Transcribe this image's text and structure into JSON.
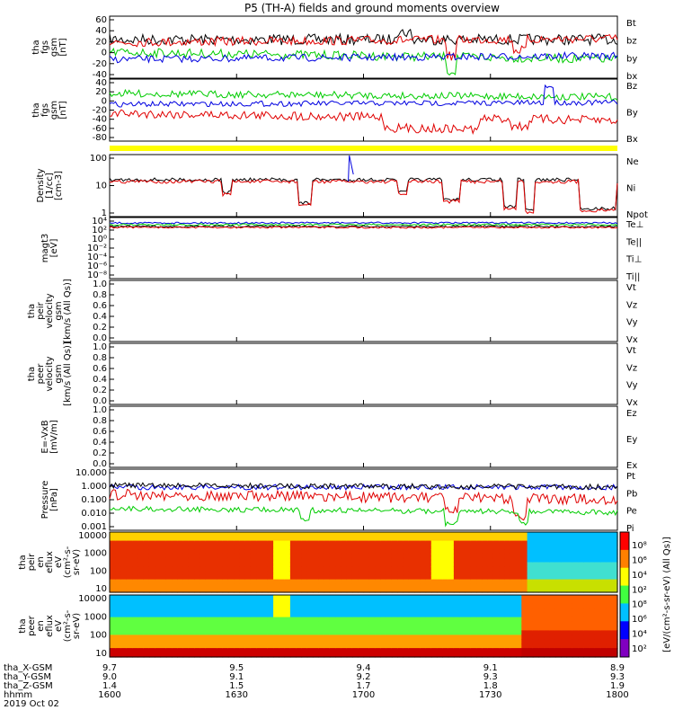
{
  "page": {
    "title": "P5 (TH-A) fields and ground moments overview"
  },
  "colors": {
    "black": "#000000",
    "red": "#e00000",
    "green": "#00cc00",
    "blue": "#0000e0",
    "yellow": "#ffff00"
  },
  "panels": [
    {
      "id": "fgs_gsm",
      "ylabel": [
        "tha",
        "fgs",
        "gsm",
        "[nT]"
      ],
      "ticks": [
        "60",
        "40",
        "20",
        "0",
        "-20",
        "-40"
      ],
      "legend": [
        {
          "label": "Bt",
          "color": "#000000"
        },
        {
          "label": "bz",
          "color": "#e00000"
        },
        {
          "label": "by",
          "color": "#00cc00"
        },
        {
          "label": "bx",
          "color": "#0000e0"
        }
      ]
    },
    {
      "id": "fgs_gsm_l",
      "ylabel": [
        "tha",
        "fgs",
        "gsm",
        "[nT]"
      ],
      "ticks": [
        "40",
        "20",
        "0",
        "-20",
        "-40",
        "-60",
        "-80"
      ],
      "legend": [
        {
          "label": "Bz",
          "color": "#e00000"
        },
        {
          "label": "By",
          "color": "#00cc00"
        },
        {
          "label": "Bx",
          "color": "#0000e0"
        }
      ]
    },
    {
      "id": "density",
      "ylabel": [
        "Density",
        "[1/cc]",
        "[cm-3]"
      ],
      "ticks": [
        "100",
        "10",
        "1"
      ],
      "legend": [
        {
          "label": "Ne",
          "color": "#e00000"
        },
        {
          "label": "Ni",
          "color": "#000000"
        },
        {
          "label": "Npot",
          "color": "#0000e0"
        }
      ]
    },
    {
      "id": "temperature",
      "ylabel": [
        "magt3",
        "[eV]"
      ],
      "ticks": [
        "10⁴",
        "10²",
        "10⁰",
        "10⁻²",
        "10⁻⁴",
        "10⁻⁶",
        "10⁻⁸"
      ],
      "legend": [
        {
          "label": "Te⊥",
          "color": "#e00000"
        },
        {
          "label": "Te||",
          "color": "#000000"
        },
        {
          "label": "Ti⊥",
          "color": "#0000e0"
        },
        {
          "label": "Ti||",
          "color": "#00cc00"
        }
      ]
    },
    {
      "id": "peir_velocity",
      "ylabel": [
        "tha",
        "peir",
        "velocity",
        "gsm",
        "[km/s (All Qs)]"
      ],
      "ticks": [
        "1.0",
        "0.8",
        "0.6",
        "0.4",
        "0.2",
        "0.0"
      ],
      "legend": [
        {
          "label": "Vt",
          "color": "#000000"
        },
        {
          "label": "Vz",
          "color": "#e00000"
        },
        {
          "label": "Vy",
          "color": "#00cc00"
        },
        {
          "label": "Vx",
          "color": "#0000e0"
        }
      ]
    },
    {
      "id": "peer_velocity",
      "ylabel": [
        "tha",
        "peer",
        "velocity",
        "gsm",
        "[km/s (All Qs)]"
      ],
      "ticks": [
        "1.0",
        "0.8",
        "0.6",
        "0.4",
        "0.2",
        "0.0"
      ],
      "legend": [
        {
          "label": "Vt",
          "color": "#000000"
        },
        {
          "label": "Vz",
          "color": "#e00000"
        },
        {
          "label": "Vy",
          "color": "#00cc00"
        },
        {
          "label": "Vx",
          "color": "#0000e0"
        }
      ]
    },
    {
      "id": "efield",
      "ylabel": [
        "E=-VxB",
        "[mV/m]"
      ],
      "ticks": [
        "1.0",
        "0.8",
        "0.6",
        "0.4",
        "0.2",
        "0.0"
      ],
      "legend": [
        {
          "label": "Ez",
          "color": "#e00000"
        },
        {
          "label": "Ey",
          "color": "#00cc00"
        },
        {
          "label": "Ex",
          "color": "#0000e0"
        }
      ]
    },
    {
      "id": "pressure",
      "ylabel": [
        "Pressure",
        "[nPa]"
      ],
      "ticks": [
        "10.000",
        "1.000",
        "0.100",
        "0.010",
        "0.001"
      ],
      "legend": [
        {
          "label": "Pt",
          "color": "#000000"
        },
        {
          "label": "Pb",
          "color": "#e00000"
        },
        {
          "label": "Pe",
          "color": "#00cc00"
        },
        {
          "label": "Pi",
          "color": "#0000e0"
        }
      ]
    },
    {
      "id": "peir_eflux",
      "ylabel": [
        "tha",
        "peir",
        "en",
        "eflux",
        "eV",
        "(cm²-s-",
        "sr-eV)"
      ],
      "ticks": [
        "10000",
        "1000",
        "100",
        "10"
      ]
    },
    {
      "id": "peer_eflux",
      "ylabel": [
        "tha",
        "peer",
        "en",
        "eflux",
        "eV",
        "(cm²-s-",
        "sr-eV)"
      ],
      "ticks": [
        "10000",
        "1000",
        "100",
        "10"
      ]
    }
  ],
  "colorbar": {
    "label": "[eV/(cm²-s-sr-eV) (All Qs)]",
    "ticks": [
      "10⁸",
      "10⁶",
      "10⁴",
      "10²",
      "10⁸",
      "10⁶",
      "10⁴",
      "10²"
    ]
  },
  "orbit": {
    "rows": [
      {
        "label": "tha_X-GSM",
        "values": [
          "9.7",
          "9.5",
          "9.4",
          "9.1",
          "8.9"
        ]
      },
      {
        "label": "tha_Y-GSM",
        "values": [
          "9.0",
          "9.1",
          "9.2",
          "9.3",
          "9.3"
        ]
      },
      {
        "label": "tha_Z-GSM",
        "values": [
          "1.4",
          "1.5",
          "1.7",
          "1.8",
          "1.9"
        ]
      },
      {
        "label": "hhmm",
        "values": [
          "1600",
          "1630",
          "1700",
          "1730",
          "1800"
        ]
      }
    ],
    "date": "2019 Oct 02"
  },
  "chart_data": {
    "type": "line",
    "title": "P5 (TH-A) fields and ground moments overview",
    "x": {
      "label": "hhmm",
      "ticks": [
        "1600",
        "1630",
        "1700",
        "1730",
        "1800"
      ],
      "range": [
        "1600",
        "1800"
      ]
    },
    "series": [
      {
        "name": "Bt",
        "panel": "fgs_gsm",
        "approx": "20-40 nT, spikes to 45"
      },
      {
        "name": "bz",
        "panel": "fgs_gsm",
        "approx": "10-40 nT"
      },
      {
        "name": "by",
        "panel": "fgs_gsm",
        "approx": "-5 to 10 nT"
      },
      {
        "name": "bx",
        "panel": "fgs_gsm",
        "approx": "-10 to 0 nT"
      },
      {
        "name": "Ne",
        "panel": "density",
        "approx": "~8 cm-3, dips to ~1"
      },
      {
        "name": "Ni",
        "panel": "density",
        "approx": "~8 cm-3"
      },
      {
        "name": "Npot",
        "panel": "density",
        "approx": "spike to ~100 near 1705"
      }
    ],
    "ylim": {
      "fgs_gsm": [
        -40,
        60
      ],
      "fgs_gsm_l": [
        -80,
        40
      ],
      "density": [
        0.3,
        200
      ],
      "pressure": [
        0.001,
        10
      ]
    }
  }
}
